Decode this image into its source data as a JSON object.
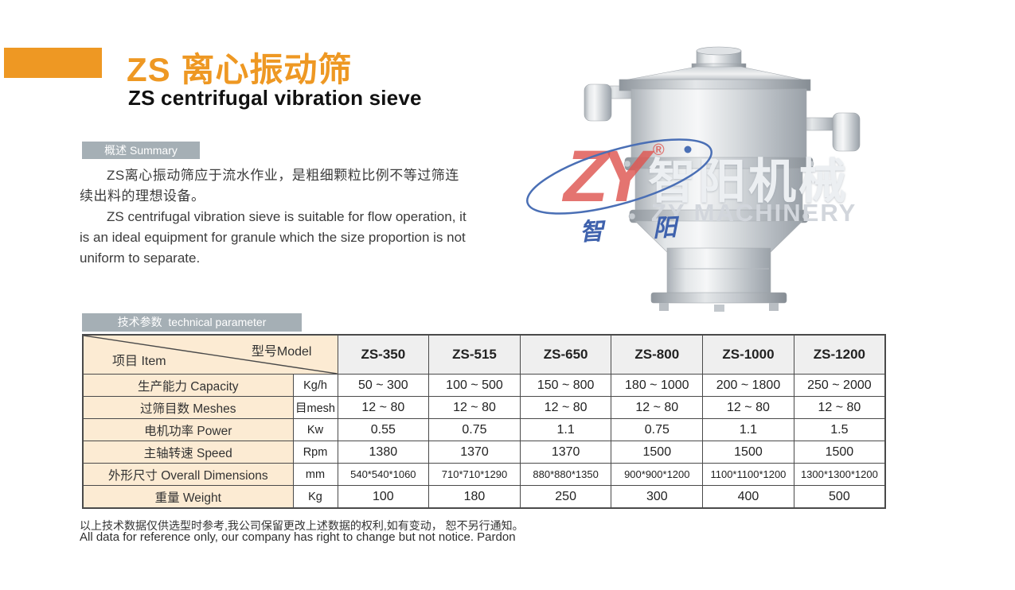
{
  "header": {
    "title_cn": "ZS 离心振动筛",
    "title_en": "ZS centrifugal vibration sieve"
  },
  "summary": {
    "heading": "概述 Summary",
    "paragraph_cn": "ZS离心振动筛应于流水作业，是粗细颗粒比例不等过筛连续出料的理想设备。",
    "paragraph_en": "ZS centrifugal vibration sieve is suitable for flow operation, it is an ideal equipment for granule which the size proportion is not uniform to separate."
  },
  "tech": {
    "heading": "技术参数  technical parameter"
  },
  "table": {
    "corner_model_label": "型号Model",
    "corner_item_label": "项目 Item",
    "models": [
      "ZS-350",
      "ZS-515",
      "ZS-650",
      "ZS-800",
      "ZS-1000",
      "ZS-1200"
    ],
    "rows": [
      {
        "name": "生产能力 Capacity",
        "unit": "Kg/h",
        "values": [
          "50 ~ 300",
          "100 ~ 500",
          "150 ~ 800",
          "180 ~ 1000",
          "200 ~ 1800",
          "250 ~ 2000"
        ],
        "small": false
      },
      {
        "name": "过筛目数 Meshes",
        "unit": "目mesh",
        "values": [
          "12 ~ 80",
          "12 ~ 80",
          "12 ~ 80",
          "12 ~ 80",
          "12 ~ 80",
          "12 ~ 80"
        ],
        "small": false
      },
      {
        "name": "电机功率 Power",
        "unit": "Kw",
        "values": [
          "0.55",
          "0.75",
          "1.1",
          "0.75",
          "1.1",
          "1.5"
        ],
        "small": false
      },
      {
        "name": "主轴转速 Speed",
        "unit": "Rpm",
        "values": [
          "1380",
          "1370",
          "1370",
          "1500",
          "1500",
          "1500"
        ],
        "small": false
      },
      {
        "name": "外形尺寸 Overall Dimensions",
        "unit": "mm",
        "values": [
          "540*540*1060",
          "710*710*1290",
          "880*880*1350",
          "900*900*1200",
          "1100*1100*1200",
          "1300*1300*1200"
        ],
        "small": true
      },
      {
        "name": "重量 Weight",
        "unit": "Kg",
        "values": [
          "100",
          "180",
          "250",
          "300",
          "400",
          "500"
        ],
        "small": false
      }
    ]
  },
  "footnote": {
    "cn": "以上技术数据仅供选型时参考,我公司保留更改上述数据的权利,如有变动， 恕不另行通知。",
    "en": "All data for reference only, our company has right to change but not notice. Pardon"
  },
  "watermark": {
    "logo_zy": "ZY",
    "registered": "®",
    "logo_cn_left": "智",
    "logo_cn_right": "阳",
    "brand_cn": "智阳机械",
    "brand_en": "ZY MACHINERY"
  },
  "colors": {
    "accent_orange": "#EE9823",
    "section_bar_gray": "#A5AFB5",
    "table_item_bg": "#FCEBD3",
    "model_header_bg": "#EFEFEF",
    "table_border": "#4A4A4A",
    "logo_red": "#DE5650",
    "logo_blue": "#4A6FB5"
  }
}
